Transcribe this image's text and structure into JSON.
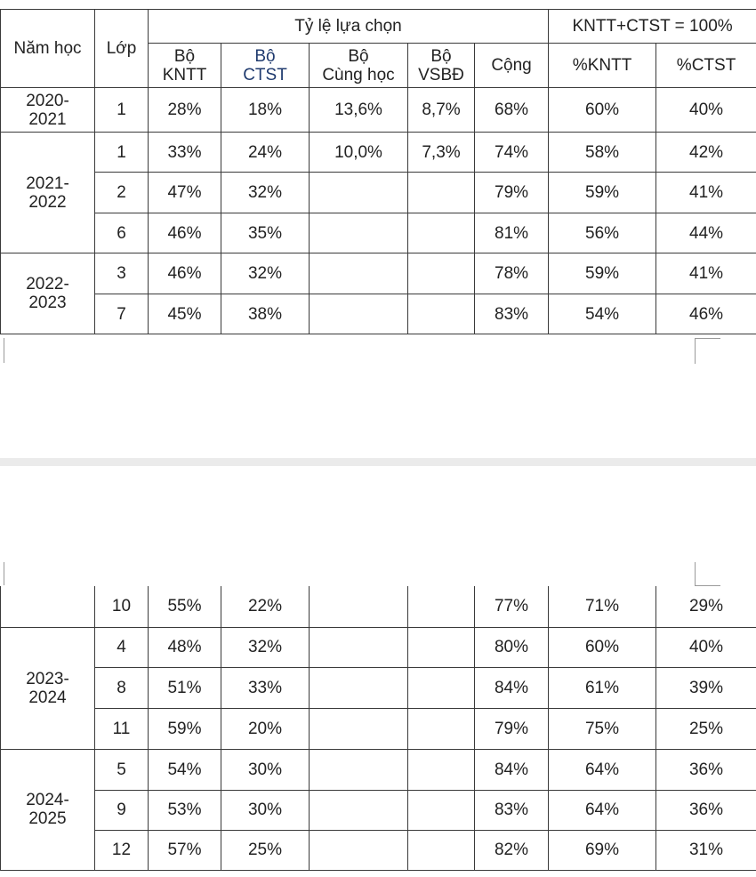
{
  "header": {
    "year": "Năm học",
    "grade": "Lớp",
    "choice_rate": "Tỷ lệ lựa chọn",
    "sum_note": "KNTT+CTST = 100%",
    "columns": [
      "Bộ\nKNTT",
      "Bộ\nCTST",
      "Bộ\nCùng học",
      "Bộ\nVSBĐ",
      "Cộng",
      "%KNTT",
      "%CTST"
    ]
  },
  "tables": [
    {
      "groups": [
        {
          "year": "2020-\n2021",
          "rows": [
            [
              "1",
              "28%",
              "18%",
              "13,6%",
              "8,7%",
              "68%",
              "60%",
              "40%"
            ]
          ]
        },
        {
          "year": "2021-\n2022",
          "rows": [
            [
              "1",
              "33%",
              "24%",
              "10,0%",
              "7,3%",
              "74%",
              "58%",
              "42%"
            ],
            [
              "2",
              "47%",
              "32%",
              null,
              null,
              "79%",
              "59%",
              "41%"
            ],
            [
              "6",
              "46%",
              "35%",
              null,
              null,
              "81%",
              "56%",
              "44%"
            ]
          ]
        },
        {
          "year": "2022-\n2023",
          "rows": [
            [
              "3",
              "46%",
              "32%",
              null,
              null,
              "78%",
              "59%",
              "41%"
            ],
            [
              "7",
              "45%",
              "38%",
              null,
              null,
              "83%",
              "54%",
              "46%"
            ]
          ]
        }
      ]
    },
    {
      "groups": [
        {
          "year": null,
          "rows": [
            [
              "10",
              "55%",
              "22%",
              null,
              null,
              "77%",
              "71%",
              "29%"
            ]
          ]
        },
        {
          "year": "2023-\n2024",
          "rows": [
            [
              "4",
              "48%",
              "32%",
              null,
              null,
              "80%",
              "60%",
              "40%"
            ],
            [
              "8",
              "51%",
              "33%",
              null,
              null,
              "84%",
              "61%",
              "39%"
            ],
            [
              "11",
              "59%",
              "20%",
              null,
              null,
              "79%",
              "75%",
              "25%"
            ]
          ]
        },
        {
          "year": "2024-\n2025",
          "rows": [
            [
              "5",
              "54%",
              "30%",
              null,
              null,
              "84%",
              "64%",
              "36%"
            ],
            [
              "9",
              "53%",
              "30%",
              null,
              null,
              "83%",
              "64%",
              "36%"
            ],
            [
              "12",
              "57%",
              "25%",
              null,
              null,
              "82%",
              "69%",
              "31%"
            ]
          ]
        }
      ]
    }
  ]
}
